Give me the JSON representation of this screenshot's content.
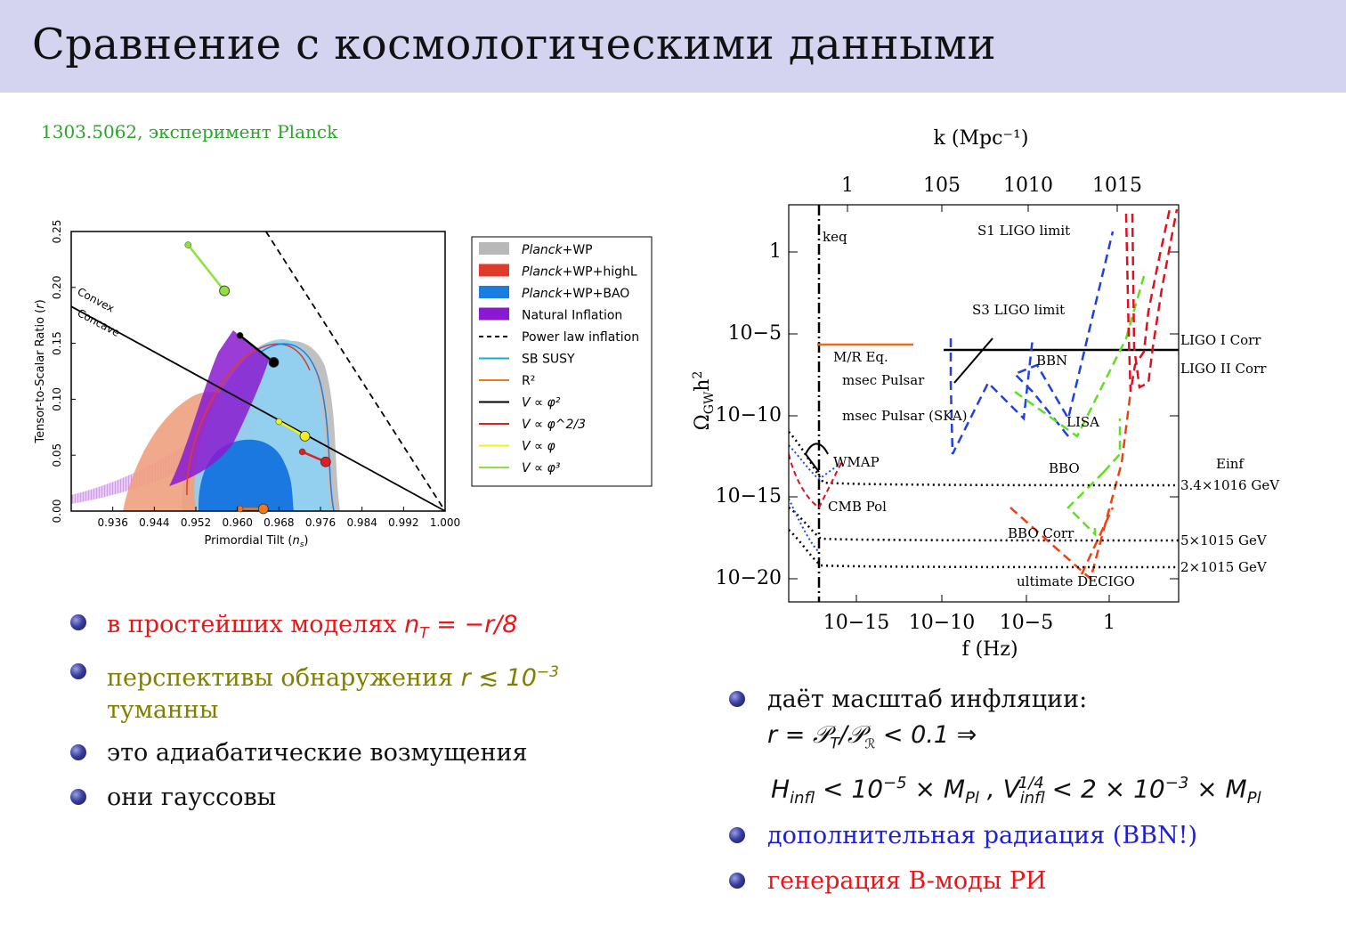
{
  "slide": {
    "title": "Сравнение с космологическими данными",
    "reference": "1303.5062, эксперимент Planck"
  },
  "left_bullets": [
    {
      "text": "в простейших моделях ",
      "math": "n_T = −r/8",
      "color": "#e8161a"
    },
    {
      "text": "перспективы обнаружения ",
      "math": "r ≲ 10^−3",
      "line2": "туманны",
      "color": "#808000"
    },
    {
      "text": "это адиабатические возмущения",
      "color": "#111111"
    },
    {
      "text": "они гауссовы",
      "color": "#111111"
    }
  ],
  "right_bullets": [
    {
      "text": "даёт масштаб инфляции:",
      "line2": "r = 𝒫_T/𝒫_ℛ < 0.1 ⇒",
      "line3": "H_infl < 10^−5 × M_Pl , V_infl^1/4 < 2 × 10^−3 × M_Pl",
      "color": "#111111"
    },
    {
      "text": "дополнительная радиация (BBN!)",
      "color": "#2020d0"
    },
    {
      "text": "генерация B-моды РИ",
      "color": "#e8161a"
    }
  ],
  "chart_data": [
    {
      "type": "scatter",
      "xlabel": "Primordial Tilt (n_s)",
      "ylabel": "Tensor-to-Scalar Ratio (r)",
      "xlim": [
        0.928,
        1.0
      ],
      "ylim": [
        0.0,
        0.25
      ],
      "x_ticks": [
        "0.936",
        "0.944",
        "0.952",
        "0.960",
        "0.968",
        "0.976",
        "0.984",
        "0.992",
        "1.000"
      ],
      "y_ticks": [
        "0.00",
        "0.05",
        "0.10",
        "0.15",
        "0.20",
        "0.25"
      ],
      "annotations": [
        "Convex",
        "Concave"
      ],
      "legend": [
        {
          "label": "Planck+WP",
          "color": "#b8b8b8",
          "kind": "patch",
          "italic_prefix": "Planck"
        },
        {
          "label": "Planck+WP+highL",
          "color": "#e03a2a",
          "kind": "patch",
          "italic_prefix": "Planck"
        },
        {
          "label": "Planck+WP+BAO",
          "color": "#1a7de0",
          "kind": "patch",
          "italic_prefix": "Planck"
        },
        {
          "label": "Natural Inflation",
          "color": "#8a1ad0",
          "kind": "patch"
        },
        {
          "label": "Power law inflation",
          "color": "#000000",
          "kind": "dash"
        },
        {
          "label": "SB SUSY",
          "color": "#1aaad8",
          "kind": "line"
        },
        {
          "label": "R²",
          "color": "#f07818",
          "kind": "line"
        },
        {
          "label": "V ∝ φ²",
          "color": "#000000",
          "kind": "line"
        },
        {
          "label": "V ∝ φ^2/3",
          "color": "#e02020",
          "kind": "line"
        },
        {
          "label": "V ∝ φ",
          "color": "#f0f020",
          "kind": "line"
        },
        {
          "label": "V ∝ φ³",
          "color": "#90e040",
          "kind": "line"
        }
      ],
      "lines": {
        "concave_boundary": [
          [
            0.928,
            0.183
          ],
          [
            1.0,
            0.0
          ]
        ],
        "power_law": [
          [
            0.9655,
            0.25
          ],
          [
            1.0,
            0.0
          ]
        ]
      },
      "model_points": [
        {
          "model": "phi3",
          "color": "#90e040",
          "points": [
            [
              0.9505,
              0.238
            ],
            [
              0.9575,
              0.197
            ]
          ]
        },
        {
          "model": "phi2",
          "color": "#000000",
          "points": [
            [
              0.9605,
              0.157
            ],
            [
              0.967,
              0.133
            ]
          ]
        },
        {
          "model": "phi1",
          "color": "#f0f020",
          "points": [
            [
              0.968,
              0.08
            ],
            [
              0.973,
              0.067
            ]
          ]
        },
        {
          "model": "phi2/3",
          "color": "#e02020",
          "points": [
            [
              0.9725,
              0.053
            ],
            [
              0.977,
              0.044
            ]
          ]
        },
        {
          "model": "R2",
          "color": "#f07818",
          "points": [
            [
              0.9605,
              0.002
            ],
            [
              0.965,
              0.002
            ]
          ]
        }
      ]
    },
    {
      "type": "line",
      "xlabel": "f (Hz)",
      "ylabel": "Ω_GW h²",
      "top_axis_label": "k (Mpc⁻¹)",
      "x_ticks": [
        "10^−15",
        "10^−10",
        "10^−5",
        "1"
      ],
      "top_ticks": [
        "1",
        "10^5",
        "10^10",
        "10^15"
      ],
      "y_ticks": [
        "1",
        "10^−5",
        "10^−10",
        "10^−15",
        "10^−20"
      ],
      "xlim_log10": [
        -19.5,
        4.5
      ],
      "ylim_log10": [
        3,
        -22
      ],
      "labels": [
        "k_eq",
        "S1 LIGO limit",
        "S3 LIGO limit",
        "M/R Eq.",
        "BBN",
        "msec Pulsar",
        "msec Pulsar (SKA)",
        "LISA",
        "WMAP",
        "BBO",
        "CMB Pol",
        "BBO Corr",
        "ultimate DECIGO",
        "LIGO I Corr",
        "LIGO II Corr"
      ],
      "right_labels": [
        "E_inf",
        "3.4×10^16 GeV",
        "5×10^15 GeV",
        "2×10^15 GeV"
      ]
    }
  ]
}
